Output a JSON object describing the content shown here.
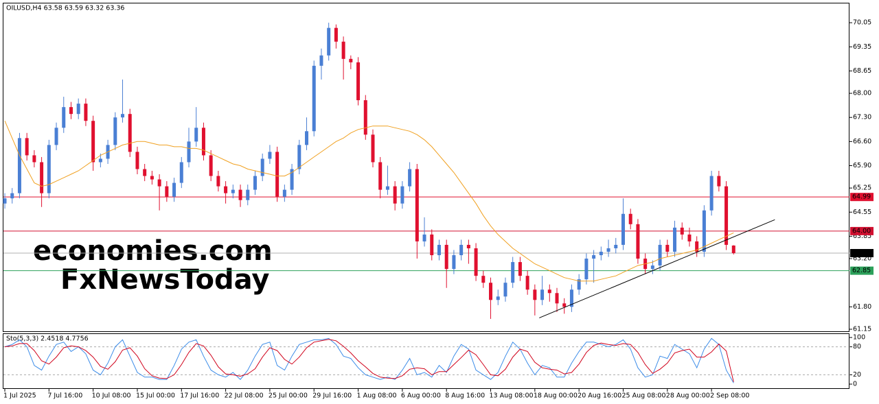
{
  "chart_data": {
    "type": "candlestick",
    "header": "OILUSD,H4  63.58 63.59 63.32 63.36",
    "watermarks": [
      "economies.com",
      "FxNewsToday"
    ],
    "up_color": "#4a7fd4",
    "down_color": "#e0102f",
    "categories": [
      "1 Jul 2025",
      null,
      null,
      null,
      null,
      null,
      "7 Jul 16:00",
      null,
      null,
      null,
      null,
      null,
      "10 Jul 08:00",
      null,
      null,
      null,
      null,
      null,
      "15 Jul 00:00",
      null,
      null,
      null,
      null,
      null,
      "17 Jul 16:00",
      null,
      null,
      null,
      null,
      null,
      "22 Jul 08:00",
      null,
      null,
      null,
      null,
      null,
      "25 Jul 00:00",
      null,
      null,
      null,
      null,
      null,
      "29 Jul 16:00",
      null,
      null,
      null,
      null,
      null,
      "1 Aug 08:00",
      null,
      null,
      null,
      null,
      null,
      "6 Aug 00:00",
      null,
      null,
      null,
      null,
      null,
      "8 Aug 16:00",
      null,
      null,
      null,
      null,
      null,
      "13 Aug 08:00",
      null,
      null,
      null,
      null,
      null,
      "18 Aug 00:00",
      null,
      null,
      null,
      null,
      null,
      "20 Aug 16:00",
      null,
      null,
      null,
      null,
      null,
      "25 Aug 08:00",
      null,
      null,
      null,
      null,
      null,
      "28 Aug 00:00",
      null,
      null,
      null,
      null,
      null,
      "2 Sep 08:00",
      null,
      null,
      null
    ],
    "candles": [
      [
        64.8,
        65.1,
        64.65,
        64.95
      ],
      [
        64.95,
        65.25,
        64.8,
        65.1
      ],
      [
        65.1,
        66.85,
        64.95,
        66.7
      ],
      [
        66.7,
        66.85,
        66.05,
        66.2
      ],
      [
        66.2,
        66.35,
        65.85,
        66.0
      ],
      [
        66.0,
        66.15,
        64.7,
        65.1
      ],
      [
        65.1,
        66.65,
        64.95,
        66.5
      ],
      [
        66.5,
        67.15,
        66.35,
        67.0
      ],
      [
        67.0,
        67.9,
        66.85,
        67.6
      ],
      [
        67.6,
        67.75,
        67.25,
        67.4
      ],
      [
        67.4,
        67.85,
        67.25,
        67.7
      ],
      [
        67.7,
        67.85,
        67.05,
        67.2
      ],
      [
        67.2,
        67.35,
        65.75,
        66.0
      ],
      [
        66.0,
        66.25,
        65.85,
        66.1
      ],
      [
        66.1,
        66.65,
        65.95,
        66.5
      ],
      [
        66.5,
        67.45,
        66.35,
        67.3
      ],
      [
        67.3,
        68.4,
        67.15,
        67.4
      ],
      [
        67.4,
        67.55,
        66.15,
        66.3
      ],
      [
        66.3,
        66.45,
        65.65,
        65.8
      ],
      [
        65.8,
        65.95,
        65.45,
        65.6
      ],
      [
        65.6,
        65.75,
        65.35,
        65.5
      ],
      [
        65.5,
        65.65,
        64.6,
        65.3
      ],
      [
        65.3,
        65.45,
        64.85,
        65.0
      ],
      [
        65.0,
        65.55,
        64.85,
        65.4
      ],
      [
        65.4,
        66.15,
        65.25,
        66.0
      ],
      [
        66.0,
        67.0,
        65.85,
        66.6
      ],
      [
        66.6,
        67.6,
        66.45,
        67.0
      ],
      [
        67.0,
        67.15,
        66.05,
        66.2
      ],
      [
        66.2,
        66.35,
        65.45,
        65.6
      ],
      [
        65.6,
        65.75,
        65.15,
        65.3
      ],
      [
        65.3,
        65.45,
        64.8,
        65.1
      ],
      [
        65.1,
        65.35,
        64.95,
        65.2
      ],
      [
        65.2,
        65.35,
        64.7,
        64.9
      ],
      [
        64.9,
        65.35,
        64.75,
        65.2
      ],
      [
        65.2,
        65.75,
        65.05,
        65.6
      ],
      [
        65.6,
        66.25,
        65.45,
        66.1
      ],
      [
        66.1,
        66.5,
        65.95,
        66.3
      ],
      [
        66.3,
        66.45,
        64.85,
        65.0
      ],
      [
        65.0,
        65.35,
        64.85,
        65.2
      ],
      [
        65.2,
        65.95,
        65.05,
        65.8
      ],
      [
        65.8,
        66.65,
        65.65,
        66.5
      ],
      [
        66.5,
        67.3,
        66.35,
        66.9
      ],
      [
        66.9,
        68.95,
        66.75,
        68.8
      ],
      [
        68.8,
        69.3,
        68.4,
        69.1
      ],
      [
        69.1,
        70.05,
        68.95,
        69.9
      ],
      [
        69.9,
        70.0,
        69.3,
        69.5
      ],
      [
        69.5,
        69.65,
        68.4,
        69.0
      ],
      [
        69.0,
        69.1,
        68.7,
        68.9
      ],
      [
        68.9,
        69.05,
        67.65,
        67.8
      ],
      [
        67.8,
        67.95,
        66.65,
        66.8
      ],
      [
        66.8,
        66.95,
        65.85,
        66.0
      ],
      [
        66.0,
        66.15,
        64.95,
        65.2
      ],
      [
        65.2,
        65.9,
        65.05,
        65.3
      ],
      [
        65.3,
        65.45,
        64.6,
        64.8
      ],
      [
        64.8,
        65.45,
        64.65,
        65.3
      ],
      [
        65.3,
        66.0,
        65.15,
        65.8
      ],
      [
        65.8,
        65.95,
        63.2,
        63.7
      ],
      [
        63.7,
        64.4,
        63.55,
        63.9
      ],
      [
        63.9,
        64.05,
        63.15,
        63.3
      ],
      [
        63.3,
        63.75,
        63.15,
        63.6
      ],
      [
        63.6,
        63.75,
        62.35,
        62.9
      ],
      [
        62.9,
        63.45,
        62.75,
        63.3
      ],
      [
        63.3,
        63.75,
        63.15,
        63.6
      ],
      [
        63.6,
        63.75,
        63.05,
        63.5
      ],
      [
        63.5,
        63.65,
        62.55,
        62.7
      ],
      [
        62.7,
        62.85,
        62.35,
        62.5
      ],
      [
        62.5,
        62.65,
        61.45,
        62.0
      ],
      [
        62.0,
        62.3,
        61.85,
        62.1
      ],
      [
        62.1,
        62.65,
        61.95,
        62.5
      ],
      [
        62.5,
        63.25,
        62.35,
        63.1
      ],
      [
        63.1,
        63.25,
        62.55,
        62.7
      ],
      [
        62.7,
        62.85,
        62.15,
        62.3
      ],
      [
        62.3,
        62.45,
        61.55,
        62.0
      ],
      [
        62.0,
        62.7,
        61.85,
        62.3
      ],
      [
        62.3,
        62.45,
        61.95,
        62.2
      ],
      [
        62.2,
        62.35,
        61.65,
        61.9
      ],
      [
        61.9,
        62.05,
        61.6,
        61.8
      ],
      [
        61.8,
        62.45,
        61.65,
        62.3
      ],
      [
        62.3,
        62.75,
        62.15,
        62.6
      ],
      [
        62.6,
        63.35,
        62.45,
        63.2
      ],
      [
        63.2,
        63.45,
        62.5,
        63.3
      ],
      [
        63.3,
        63.55,
        63.15,
        63.4
      ],
      [
        63.4,
        63.75,
        63.25,
        63.5
      ],
      [
        63.5,
        63.8,
        63.35,
        63.6
      ],
      [
        63.6,
        64.95,
        63.45,
        64.5
      ],
      [
        64.5,
        64.65,
        64.05,
        64.2
      ],
      [
        64.2,
        64.35,
        63.05,
        63.2
      ],
      [
        63.2,
        63.35,
        62.75,
        62.9
      ],
      [
        62.9,
        63.15,
        62.75,
        63.0
      ],
      [
        63.0,
        63.75,
        62.85,
        63.6
      ],
      [
        63.6,
        63.75,
        63.25,
        63.4
      ],
      [
        63.4,
        64.3,
        63.25,
        64.1
      ],
      [
        64.1,
        64.25,
        63.75,
        63.9
      ],
      [
        63.9,
        64.1,
        63.55,
        63.7
      ],
      [
        63.7,
        63.85,
        63.25,
        63.4
      ],
      [
        63.4,
        64.75,
        63.25,
        64.6
      ],
      [
        64.6,
        65.75,
        64.45,
        65.6
      ],
      [
        65.6,
        65.75,
        65.15,
        65.3
      ],
      [
        65.3,
        65.45,
        63.45,
        63.6
      ],
      [
        63.58,
        63.59,
        63.32,
        63.36
      ]
    ],
    "ma": {
      "color": "#f0a020",
      "values": [
        67.2,
        66.7,
        66.2,
        65.8,
        65.4,
        65.3,
        65.35,
        65.45,
        65.55,
        65.65,
        65.75,
        65.9,
        66.05,
        66.2,
        66.3,
        66.4,
        66.5,
        66.55,
        66.6,
        66.6,
        66.55,
        66.5,
        66.5,
        66.45,
        66.45,
        66.4,
        66.4,
        66.35,
        66.25,
        66.15,
        66.05,
        65.95,
        65.9,
        65.8,
        65.75,
        65.7,
        65.65,
        65.6,
        65.6,
        65.7,
        65.85,
        66.0,
        66.15,
        66.3,
        66.45,
        66.6,
        66.7,
        66.85,
        66.95,
        67.0,
        67.05,
        67.05,
        67.05,
        67.0,
        66.95,
        66.9,
        66.8,
        66.65,
        66.45,
        66.2,
        65.95,
        65.7,
        65.4,
        65.1,
        64.8,
        64.45,
        64.15,
        63.9,
        63.7,
        63.5,
        63.35,
        63.2,
        63.05,
        62.95,
        62.85,
        62.75,
        62.65,
        62.6,
        62.55,
        62.55,
        62.55,
        62.6,
        62.65,
        62.7,
        62.8,
        62.9,
        63.0,
        63.05,
        63.1,
        63.2,
        63.25,
        63.3,
        63.35,
        63.4,
        63.45,
        63.55,
        63.65,
        63.75,
        63.85,
        63.95
      ]
    },
    "hlines": [
      {
        "value": 64.99,
        "label": "64.99",
        "color": "#e0102f"
      },
      {
        "value": 64,
        "label": "64.00",
        "color": "#d01030"
      },
      {
        "value": 63.36,
        "label": "63.36",
        "color": "#b0b0b0",
        "label_bg": "#000000"
      },
      {
        "value": 62.85,
        "label": "62.85",
        "color": "#2ca05a"
      }
    ],
    "trendline": {
      "x": [
        72.6,
        104.6
      ],
      "y": [
        61.48,
        64.33
      ],
      "color": "#000000"
    },
    "ylim": [
      61.09,
      70.61
    ],
    "yticks": [
      70.05,
      69.35,
      68.65,
      {
        "value": 68,
        "label": "68.00"
      },
      {
        "value": 67.3,
        "label": "67.30"
      },
      {
        "value": 66.6,
        "label": "66.60"
      },
      {
        "value": 65.9,
        "label": "65.90"
      },
      65.25,
      64.55,
      63.85,
      {
        "value": 63.2,
        "label": "63.20"
      },
      {
        "value": 61.8,
        "label": "61.80"
      },
      61.15
    ],
    "stochastic": {
      "title": "Sto(5,3,3) 2.4518 4.7756",
      "ylim": [
        -8.8,
        107.4
      ],
      "yticks": [
        100,
        80,
        20,
        0
      ],
      "levels": [
        80,
        20
      ],
      "series": [
        {
          "name": "Main",
          "color": "#3c8ce8",
          "values": [
            80,
            85,
            95,
            80,
            40,
            30,
            60,
            85,
            90,
            70,
            80,
            65,
            30,
            20,
            45,
            80,
            95,
            60,
            25,
            15,
            15,
            10,
            10,
            40,
            75,
            90,
            95,
            60,
            30,
            20,
            15,
            25,
            10,
            30,
            60,
            85,
            90,
            40,
            30,
            60,
            85,
            90,
            95,
            95,
            98,
            85,
            60,
            55,
            35,
            20,
            15,
            10,
            15,
            10,
            30,
            55,
            20,
            25,
            15,
            40,
            25,
            60,
            85,
            75,
            30,
            20,
            10,
            25,
            60,
            90,
            75,
            45,
            20,
            40,
            35,
            15,
            15,
            45,
            70,
            90,
            90,
            85,
            80,
            85,
            95,
            75,
            35,
            15,
            20,
            60,
            55,
            85,
            75,
            65,
            35,
            75,
            98,
            85,
            30,
            2.4518
          ]
        },
        {
          "name": "Signal",
          "color": "#d0021b",
          "values": [
            80,
            82,
            87,
            87,
            72,
            50,
            43,
            58,
            78,
            82,
            80,
            72,
            58,
            38,
            32,
            48,
            73,
            78,
            60,
            33,
            18,
            13,
            12,
            20,
            42,
            68,
            87,
            82,
            62,
            37,
            22,
            20,
            17,
            22,
            33,
            58,
            78,
            72,
            53,
            43,
            58,
            78,
            90,
            93,
            96,
            93,
            81,
            67,
            50,
            37,
            23,
            15,
            13,
            12,
            18,
            32,
            35,
            33,
            20,
            27,
            27,
            42,
            57,
            73,
            63,
            42,
            20,
            18,
            32,
            58,
            75,
            70,
            47,
            35,
            32,
            30,
            22,
            25,
            43,
            68,
            83,
            88,
            85,
            83,
            87,
            85,
            68,
            42,
            23,
            32,
            45,
            67,
            72,
            75,
            58,
            58,
            69,
            86,
            71,
            4.7756
          ]
        }
      ]
    }
  }
}
